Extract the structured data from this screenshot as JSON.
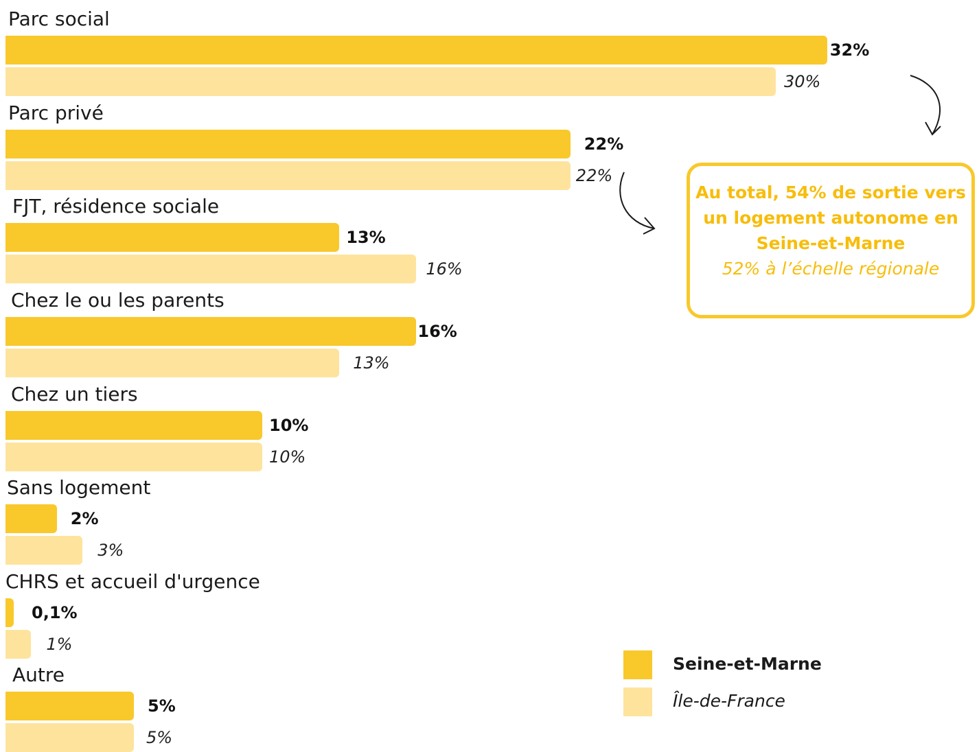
{
  "chart_data": {
    "type": "bar",
    "orientation": "horizontal",
    "categories": [
      "Parc social",
      "Parc privé",
      "FJT, résidence sociale",
      "Chez le ou les parents",
      "Chez un tiers",
      "Sans logement",
      "CHRS et accueil d'urgence",
      "Autre"
    ],
    "series": [
      {
        "name": "Seine-et-Marne",
        "values": [
          32,
          22,
          13,
          16,
          10,
          2,
          0.1,
          5
        ],
        "labels": [
          "32%",
          "22%",
          "13%",
          "16%",
          "10%",
          "2%",
          "0,1%",
          "5%"
        ],
        "color": "#f9c82b"
      },
      {
        "name": "Île-de-France",
        "values": [
          30,
          22,
          16,
          13,
          10,
          3,
          1,
          5
        ],
        "labels": [
          "30%",
          "22%",
          "16%",
          "13%",
          "10%",
          "3%",
          "1%",
          "5%"
        ],
        "color": "#fee39d"
      }
    ],
    "legend_position": "bottom-right",
    "grid": false,
    "annotation": {
      "highlight_lines": [
        "Au total, 54% de sortie vers",
        "un logement autonome en",
        "Seine-et-Marne"
      ],
      "subtext": "52% à l’échelle régionale",
      "color": "#f7bd0c"
    }
  }
}
